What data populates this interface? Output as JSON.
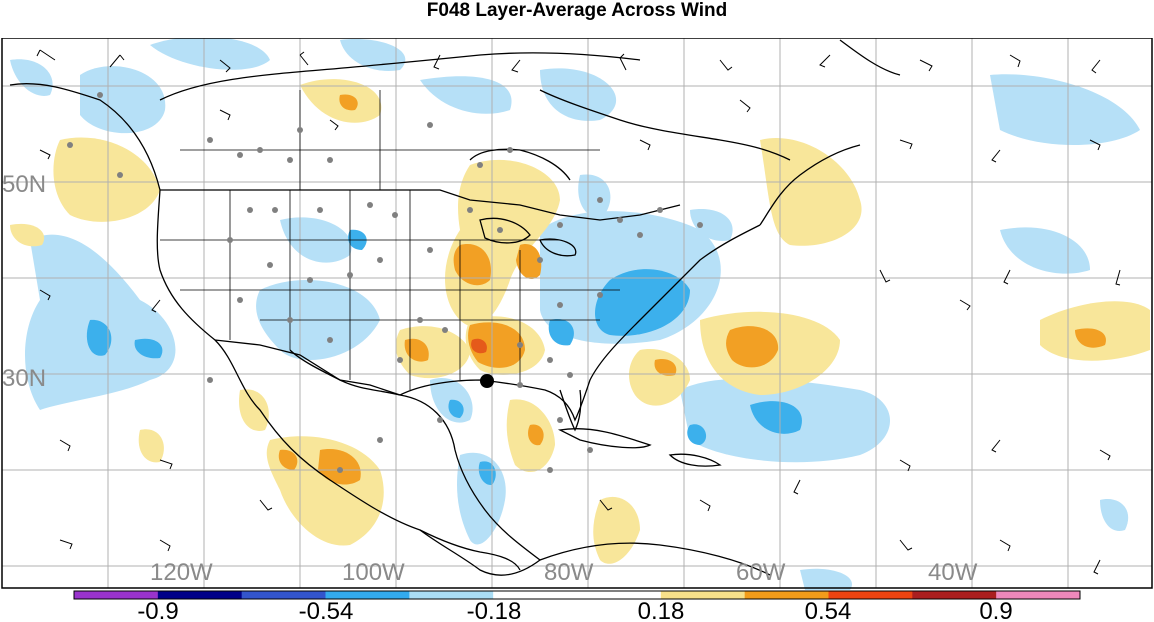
{
  "title": "F048 Layer-Average Across Wind",
  "lat_labels": [
    "50N",
    "30N"
  ],
  "lon_labels": [
    "120W",
    "100W",
    "80W",
    "60W",
    "40W"
  ],
  "colorbar": {
    "colors": [
      "#9933cc",
      "#000088",
      "#3355cc",
      "#33aaee",
      "#aaddf5",
      "#ffffff",
      "#ffffff",
      "#f7e08a",
      "#f29c1a",
      "#ee4411",
      "#aa1f1f",
      "#ee88bb"
    ],
    "labels": [
      "-0.9",
      "-0.54",
      "-0.18",
      "0.18",
      "0.54",
      "0.9"
    ]
  },
  "colors": {
    "light_blue": "#b6e0f7",
    "mid_blue": "#3cb0ec",
    "light_yellow": "#f8e69a",
    "orange": "#f2a024",
    "red": "#e55a1a",
    "grid": "#b0b0b0",
    "coast": "#000000",
    "obs_dot": "#808080"
  },
  "marker": "station-marker"
}
